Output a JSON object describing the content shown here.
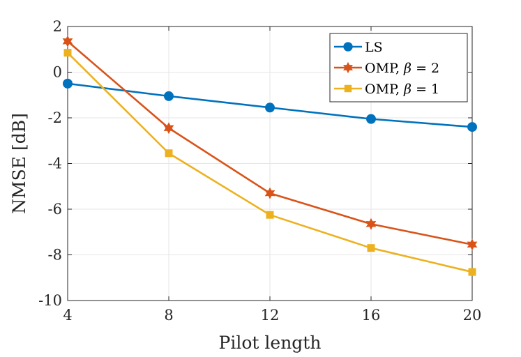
{
  "chart_data": {
    "type": "line",
    "title": "",
    "xlabel": "Pilot length",
    "ylabel": "NMSE [dB]",
    "xlim": [
      4,
      20
    ],
    "ylim": [
      -10,
      2
    ],
    "xticks": [
      4,
      8,
      12,
      16,
      20
    ],
    "yticks": [
      2,
      0,
      -2,
      -4,
      -6,
      -8,
      -10
    ],
    "grid": true,
    "legend_position": "top-right",
    "x": [
      4,
      8,
      12,
      16,
      20
    ],
    "series": [
      {
        "name": "LS",
        "legend_prefix": "LS",
        "legend_italic": "",
        "legend_suffix": "",
        "values": [
          -0.5,
          -1.05,
          -1.55,
          -2.05,
          -2.4
        ],
        "color": "#0072BD",
        "marker": "circle"
      },
      {
        "name": "OMP, β = 2",
        "legend_prefix": "OMP, ",
        "legend_italic": "β",
        "legend_suffix": " = 2",
        "values": [
          1.35,
          -2.45,
          -5.3,
          -6.65,
          -7.55
        ],
        "color": "#D95319",
        "marker": "hexagram"
      },
      {
        "name": "OMP, β = 1",
        "legend_prefix": "OMP, ",
        "legend_italic": "β",
        "legend_suffix": " = 1",
        "values": [
          0.85,
          -3.55,
          -6.25,
          -7.7,
          -8.75
        ],
        "color": "#EDB120",
        "marker": "square"
      }
    ]
  }
}
